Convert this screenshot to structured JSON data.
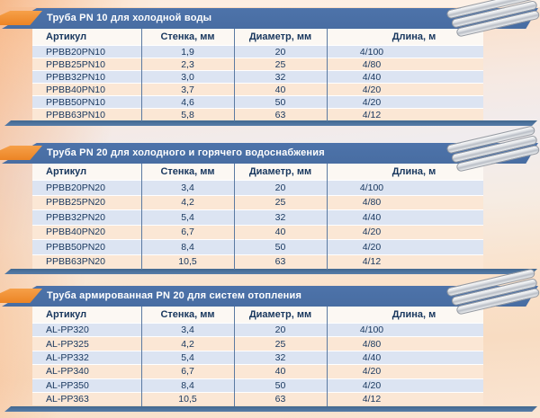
{
  "tables": [
    {
      "title": "Труба PN 10 для холодной воды",
      "columns": [
        "Артикул",
        "Стенка, мм",
        "Диаметр, мм",
        "Длина, м"
      ],
      "rows": [
        [
          "PPBB20PN10",
          "1,9",
          "20",
          "4/100"
        ],
        [
          "PPBB25PN10",
          "2,3",
          "25",
          "4/80"
        ],
        [
          "PPBB32PN10",
          "3,0",
          "32",
          "4/40"
        ],
        [
          "PPBB40PN10",
          "3,7",
          "40",
          "4/20"
        ],
        [
          "PPBB50PN10",
          "4,6",
          "50",
          "4/20"
        ],
        [
          "PPBB63PN10",
          "5,8",
          "63",
          "4/12"
        ]
      ]
    },
    {
      "title": "Труба PN 20 для холодного и горячего водоснабжения",
      "columns": [
        "Артикул",
        "Стенка, мм",
        "Диаметр, мм",
        "Длина, м"
      ],
      "rows": [
        [
          "PPBB20PN20",
          "3,4",
          "20",
          "4/100"
        ],
        [
          "PPBB25PN20",
          "4,2",
          "25",
          "4/80"
        ],
        [
          "PPBB32PN20",
          "5,4",
          "32",
          "4/40"
        ],
        [
          "PPBB40PN20",
          "6,7",
          "40",
          "4/20"
        ],
        [
          "PPBB50PN20",
          "8,4",
          "50",
          "4/20"
        ],
        [
          "PPBB63PN20",
          "10,5",
          "63",
          "4/12"
        ]
      ]
    },
    {
      "title": "Труба армированная PN 20 для систем отопления",
      "columns": [
        "Артикул",
        "Стенка, мм",
        "Диаметр, мм",
        "Длина, м"
      ],
      "rows": [
        [
          "AL-PP320",
          "3,4",
          "20",
          "4/100"
        ],
        [
          "AL-PP325",
          "4,2",
          "25",
          "4/80"
        ],
        [
          "AL-PP332",
          "5,4",
          "32",
          "4/40"
        ],
        [
          "AL-PP340",
          "6,7",
          "40",
          "4/20"
        ],
        [
          "AL-PP350",
          "8,4",
          "50",
          "4/20"
        ],
        [
          "AL-PP363",
          "10,5",
          "63",
          "4/12"
        ]
      ]
    }
  ],
  "icons": {
    "banner_flag": "orange-flag-icon",
    "pipes": "pipes-bundle-icon"
  },
  "colors": {
    "banner_blue": "#4d73aa",
    "accent_orange": "#ec8424",
    "row_blue": "#dce4f2",
    "row_peach": "#fbe7d5",
    "text_navy": "#17365d",
    "separator": "#5b7aa2",
    "end_bar": "#567ca8"
  }
}
